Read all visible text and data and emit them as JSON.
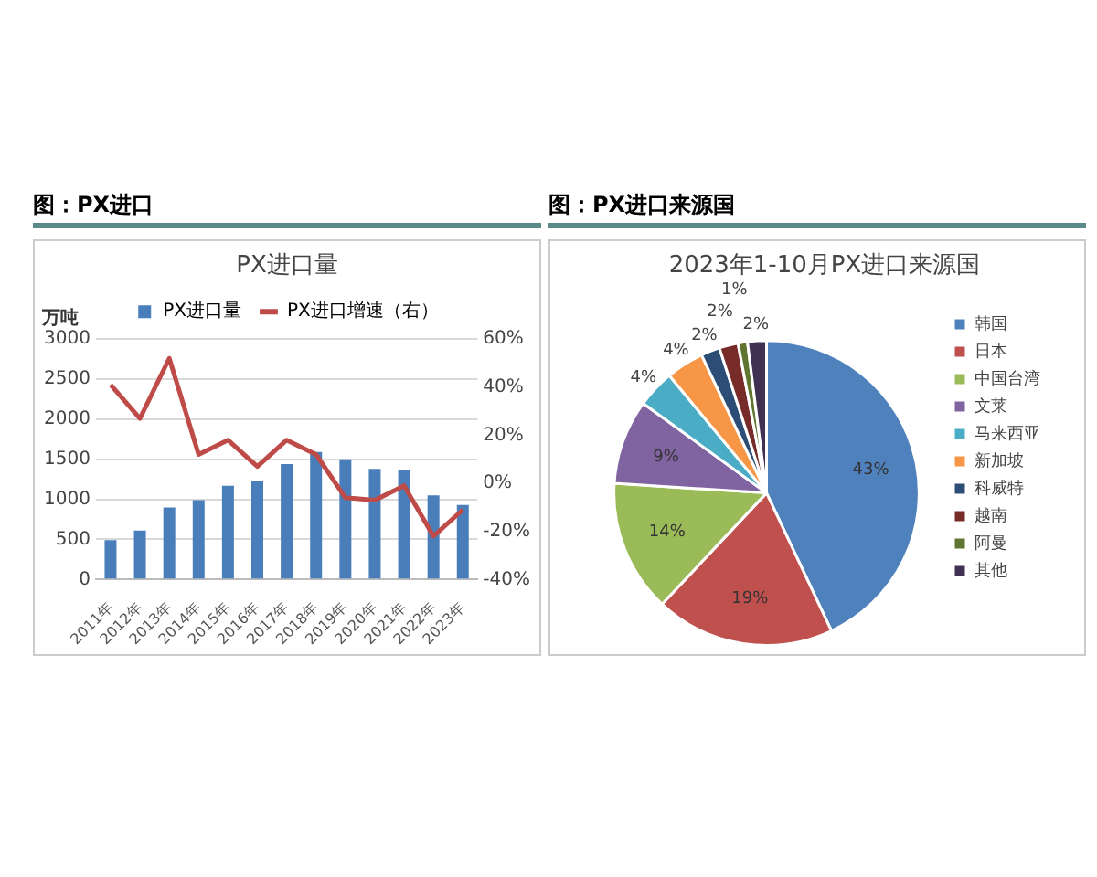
{
  "chart_data": [
    {
      "type": "bar",
      "annotations": [
        "图：PX进口"
      ],
      "title": "PX进口量",
      "ylabel": "万吨",
      "categories": [
        "2011年",
        "2012年",
        "2013年",
        "2014年",
        "2015年",
        "2016年",
        "2017年",
        "2018年",
        "2019年",
        "2020年",
        "2021年",
        "2022年",
        "2023年"
      ],
      "series": [
        {
          "name": "PX进口量",
          "color": "#4a7ebb",
          "values": [
            490,
            610,
            900,
            990,
            1170,
            1230,
            1440,
            1590,
            1500,
            1380,
            1360,
            1050,
            930
          ]
        },
        {
          "name": "PX进口增速（右）",
          "type": "line",
          "axis": "y2",
          "color": "#be4b48",
          "values": [
            41,
            27,
            52,
            12,
            18,
            7,
            18,
            12,
            -6,
            -7,
            -1,
            -22,
            -11
          ]
        }
      ],
      "ylim": [
        0,
        3000
      ],
      "yticks": [
        0,
        500,
        1000,
        1500,
        2000,
        2500,
        3000
      ],
      "y2lim": [
        -40,
        60
      ],
      "y2ticks": [
        {
          "value": -40,
          "label": "-40%"
        },
        {
          "value": -20,
          "label": "-20%"
        },
        {
          "value": 0,
          "label": "0%"
        },
        {
          "value": 20,
          "label": "20%"
        },
        {
          "value": 40,
          "label": "40%"
        },
        {
          "value": 60,
          "label": "60%"
        }
      ],
      "grid": "y",
      "legend": "top",
      "marker": "none"
    },
    {
      "type": "pie",
      "annotations": [
        "图：PX进口来源国"
      ],
      "title": "2023年1-10月PX进口来源国",
      "categories": [
        "韩国",
        "日本",
        "中国台湾",
        "文莱",
        "马来西亚",
        "新加坡",
        "科威特",
        "越南",
        "阿曼",
        "其他"
      ],
      "values": [
        43,
        19,
        14,
        9,
        4,
        4,
        2,
        2,
        1,
        2
      ],
      "colors": [
        "#4f81bd",
        "#c0504d",
        "#9bbb59",
        "#8064a2",
        "#4bacc6",
        "#f79646",
        "#2c4d75",
        "#772c2a",
        "#5f7530",
        "#403152"
      ],
      "value_labels": [
        "43%",
        "19%",
        "14%",
        "9%",
        "4%",
        "4%",
        "2%",
        "2%",
        "1%",
        "2%"
      ],
      "legend": "right"
    }
  ]
}
